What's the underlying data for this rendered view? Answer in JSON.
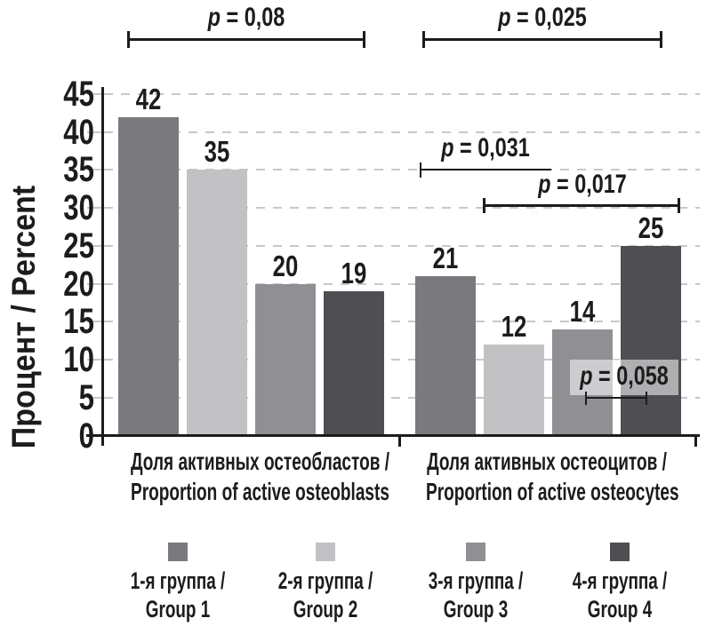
{
  "colors": {
    "ink": "#1c1c1e",
    "gridline": "#c8c8c8",
    "background": "#ffffff",
    "annotation_box": "rgba(255,255,255,0.55)"
  },
  "chart_data": {
    "type": "bar",
    "title": "",
    "xlabel": "",
    "ylabel": "Процент / Percent",
    "ylim": [
      0,
      45
    ],
    "ytick_step": 5,
    "grid": "horizontal dashed gridlines every 5",
    "legend_position": "bottom",
    "categories": [
      {
        "label_ru": "Доля активных остеобластов /",
        "label_en": "Proportion of active osteoblasts"
      },
      {
        "label_ru": "Доля активных остеоцитов /",
        "label_en": "Proportion of active osteocytes"
      }
    ],
    "series": [
      {
        "name_ru": "1-я группа /",
        "name_en": "Group 1",
        "color": "#7a7a7e",
        "values": [
          42,
          21
        ]
      },
      {
        "name_ru": "2-я группа /",
        "name_en": "Group 2",
        "color": "#c2c2c4",
        "values": [
          35,
          12
        ]
      },
      {
        "name_ru": "3-я группа /",
        "name_en": "Group 3",
        "color": "#909094",
        "values": [
          20,
          14
        ]
      },
      {
        "name_ru": "4-я группа /",
        "name_en": "Group 4",
        "color": "#4f4f53",
        "values": [
          19,
          25
        ]
      }
    ],
    "value_labels": [
      42,
      35,
      20,
      19,
      21,
      12,
      14,
      25
    ],
    "annotations": [
      {
        "label": "p = 0,08"
      },
      {
        "label": "p = 0,025"
      },
      {
        "label": "p = 0,031"
      },
      {
        "label": "p = 0,017"
      },
      {
        "label": "p = 0,058"
      }
    ]
  }
}
